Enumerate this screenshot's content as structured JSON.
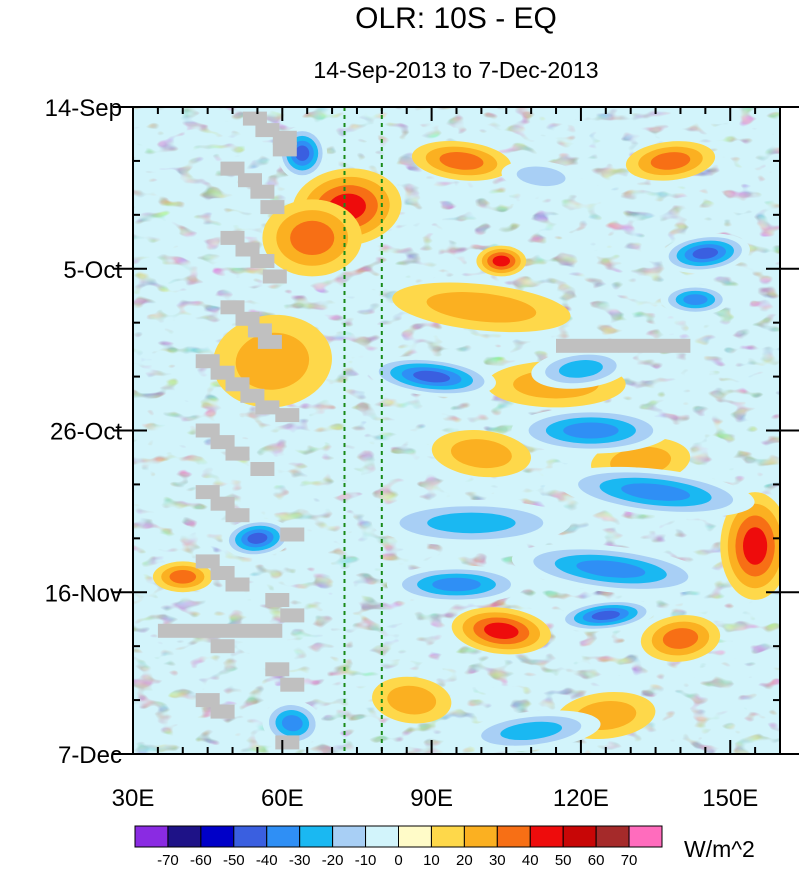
{
  "chart_data": {
    "type": "heatmap",
    "title": "OLR: 10S - EQ",
    "subtitle": "14-Sep-2013 to 7-Dec-2013",
    "x_axis": {
      "range": [
        30,
        160
      ],
      "ticks": [
        30,
        60,
        90,
        120,
        150
      ],
      "tick_labels": [
        "30E",
        "60E",
        "90E",
        "120E",
        "150E"
      ]
    },
    "y_axis": {
      "range_days": [
        0,
        84
      ],
      "ticks_days": [
        0,
        21,
        42,
        63,
        84
      ],
      "tick_labels": [
        "14-Sep",
        "5-Oct",
        "26-Oct",
        "16-Nov",
        "7-Dec"
      ]
    },
    "reference_lines_lon": [
      72.5,
      80
    ],
    "colorbar": {
      "units": "W/m^2",
      "levels": [
        -70,
        -60,
        -50,
        -40,
        -30,
        -20,
        -10,
        0,
        10,
        20,
        30,
        40,
        50,
        60,
        70
      ],
      "level_labels": [
        "-70",
        "-60",
        "-50",
        "-40",
        "-30",
        "-20",
        "-10",
        "0",
        "10",
        "20",
        "30",
        "40",
        "50",
        "60",
        "70"
      ],
      "colors": [
        "#8a2be2",
        "#1e1287",
        "#0000c8",
        "#3a5fe0",
        "#2f8ff5",
        "#1ab8f2",
        "#a8cff5",
        "#d2f4fb",
        "#fffbc8",
        "#fed84a",
        "#fbb021",
        "#f76f15",
        "#ee0c0c",
        "#c80606",
        "#a52a2a",
        "#ff6cbd"
      ]
    },
    "anomaly_features": [
      {
        "lon": 73,
        "day": 13,
        "value": 40,
        "rx": 11,
        "ry": 5
      },
      {
        "lon": 66,
        "day": 17,
        "value": 30,
        "rx": 10,
        "ry": 5
      },
      {
        "lon": 96,
        "day": 7,
        "value": 30,
        "rx": 10,
        "ry": 2.5
      },
      {
        "lon": 138,
        "day": 7,
        "value": 30,
        "rx": 9,
        "ry": 2.5
      },
      {
        "lon": 104,
        "day": 20,
        "value": 40,
        "rx": 5,
        "ry": 2
      },
      {
        "lon": 100,
        "day": 26,
        "value": 20,
        "rx": 18,
        "ry": 3
      },
      {
        "lon": 58,
        "day": 33,
        "value": 20,
        "rx": 12,
        "ry": 6
      },
      {
        "lon": 115,
        "day": 36,
        "value": 20,
        "rx": 14,
        "ry": 3
      },
      {
        "lon": 100,
        "day": 45,
        "value": 20,
        "rx": 10,
        "ry": 3
      },
      {
        "lon": 132,
        "day": 46,
        "value": 20,
        "rx": 10,
        "ry": 3
      },
      {
        "lon": 155,
        "day": 57,
        "value": 40,
        "rx": 7,
        "ry": 7
      },
      {
        "lon": 104,
        "day": 68,
        "value": 40,
        "rx": 10,
        "ry": 3
      },
      {
        "lon": 140,
        "day": 69,
        "value": 30,
        "rx": 8,
        "ry": 3
      },
      {
        "lon": 40,
        "day": 61,
        "value": 30,
        "rx": 6,
        "ry": 2
      },
      {
        "lon": 86,
        "day": 77,
        "value": 20,
        "rx": 8,
        "ry": 3
      },
      {
        "lon": 125,
        "day": 79,
        "value": 20,
        "rx": 10,
        "ry": 3
      },
      {
        "lon": 64,
        "day": 6,
        "value": -50,
        "rx": 5,
        "ry": 3.5
      },
      {
        "lon": 112,
        "day": 9,
        "value": -20,
        "rx": 8,
        "ry": 2
      },
      {
        "lon": 145,
        "day": 19,
        "value": -50,
        "rx": 9,
        "ry": 2.5
      },
      {
        "lon": 143,
        "day": 25,
        "value": -40,
        "rx": 7,
        "ry": 2
      },
      {
        "lon": 90,
        "day": 35,
        "value": -50,
        "rx": 13,
        "ry": 2.5
      },
      {
        "lon": 120,
        "day": 34,
        "value": -30,
        "rx": 10,
        "ry": 2.5
      },
      {
        "lon": 122,
        "day": 42,
        "value": -40,
        "rx": 16,
        "ry": 3
      },
      {
        "lon": 135,
        "day": 50,
        "value": -40,
        "rx": 20,
        "ry": 3
      },
      {
        "lon": 55,
        "day": 56,
        "value": -50,
        "rx": 7,
        "ry": 2.5
      },
      {
        "lon": 98,
        "day": 54,
        "value": -30,
        "rx": 20,
        "ry": 3
      },
      {
        "lon": 126,
        "day": 60,
        "value": -40,
        "rx": 20,
        "ry": 3
      },
      {
        "lon": 125,
        "day": 66,
        "value": -50,
        "rx": 10,
        "ry": 2
      },
      {
        "lon": 95,
        "day": 62,
        "value": -40,
        "rx": 14,
        "ry": 2.5
      },
      {
        "lon": 62,
        "day": 80,
        "value": -40,
        "rx": 6,
        "ry": 3
      },
      {
        "lon": 110,
        "day": 81,
        "value": -30,
        "rx": 14,
        "ry": 2.5
      }
    ],
    "missing_data": [
      {
        "lon": 54.5,
        "day": 1.5
      },
      {
        "lon": 57,
        "day": 3
      },
      {
        "lon": 60.5,
        "day": 4
      },
      {
        "lon": 60.5,
        "day": 5.5
      },
      {
        "lon": 50,
        "day": 8
      },
      {
        "lon": 53.5,
        "day": 9.5
      },
      {
        "lon": 56,
        "day": 11
      },
      {
        "lon": 58,
        "day": 13
      },
      {
        "lon": 50,
        "day": 17
      },
      {
        "lon": 53,
        "day": 18.5
      },
      {
        "lon": 56,
        "day": 20
      },
      {
        "lon": 58.5,
        "day": 22
      },
      {
        "lon": 50,
        "day": 26
      },
      {
        "lon": 53,
        "day": 27.5
      },
      {
        "lon": 55.5,
        "day": 29
      },
      {
        "lon": 57.5,
        "day": 30.5
      },
      {
        "lon": 45,
        "day": 33
      },
      {
        "lon": 48,
        "day": 34.5
      },
      {
        "lon": 51,
        "day": 36
      },
      {
        "lon": 54,
        "day": 37.5
      },
      {
        "lon": 57,
        "day": 39
      },
      {
        "lon": 61,
        "day": 40
      },
      {
        "lon": 45,
        "day": 42
      },
      {
        "lon": 48,
        "day": 43.5
      },
      {
        "lon": 51,
        "day": 45
      },
      {
        "lon": 56,
        "day": 47
      },
      {
        "lon": 45,
        "day": 50
      },
      {
        "lon": 48,
        "day": 51.5
      },
      {
        "lon": 51,
        "day": 53
      },
      {
        "lon": 62,
        "day": 55.5
      },
      {
        "lon": 45,
        "day": 59
      },
      {
        "lon": 48,
        "day": 60.5
      },
      {
        "lon": 51,
        "day": 62
      },
      {
        "lon": 59,
        "day": 64
      },
      {
        "lon": 62,
        "day": 66
      },
      {
        "lon": 48,
        "day": 70
      },
      {
        "lon": 59,
        "day": 73
      },
      {
        "lon": 62,
        "day": 75
      },
      {
        "lon": 45,
        "day": 77
      },
      {
        "lon": 48,
        "day": 78.5
      },
      {
        "lon": 61,
        "day": 82.5
      }
    ],
    "missing_bands": [
      {
        "lon_start": 35,
        "lon_end": 60,
        "day": 68
      },
      {
        "lon_start": 115,
        "lon_end": 142,
        "day": 31
      }
    ]
  }
}
